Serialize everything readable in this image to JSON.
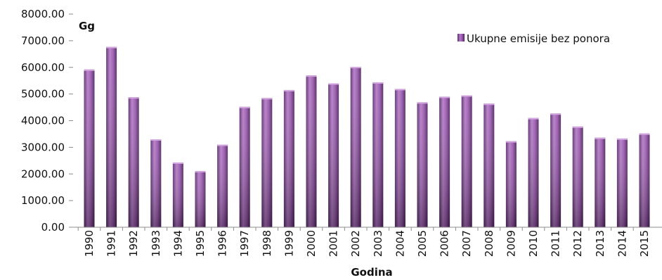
{
  "chart_data": {
    "type": "bar",
    "ylabel": "Gg",
    "xlabel": "Godina",
    "ylim": [
      0,
      8000
    ],
    "ytick_step": 1000,
    "ytick_format": "0.00",
    "grid": false,
    "legend_position": "top-right",
    "bar_color": "#7b3f8e",
    "categories": [
      "1990",
      "1991",
      "1992",
      "1993",
      "1994",
      "1995",
      "1996",
      "1997",
      "1998",
      "1999",
      "2000",
      "2001",
      "2002",
      "2003",
      "2004",
      "2005",
      "2006",
      "2007",
      "2008",
      "2009",
      "2010",
      "2011",
      "2012",
      "2013",
      "2014",
      "2015"
    ],
    "series": [
      {
        "name": "Ukupne emisije bez ponora",
        "values": [
          5920,
          6770,
          4880,
          3300,
          2430,
          2110,
          3100,
          4520,
          4850,
          5150,
          5700,
          5400,
          6020,
          5440,
          5190,
          4690,
          4900,
          4950,
          4640,
          3230,
          4100,
          4270,
          3780,
          3360,
          3330,
          3520
        ]
      }
    ]
  }
}
